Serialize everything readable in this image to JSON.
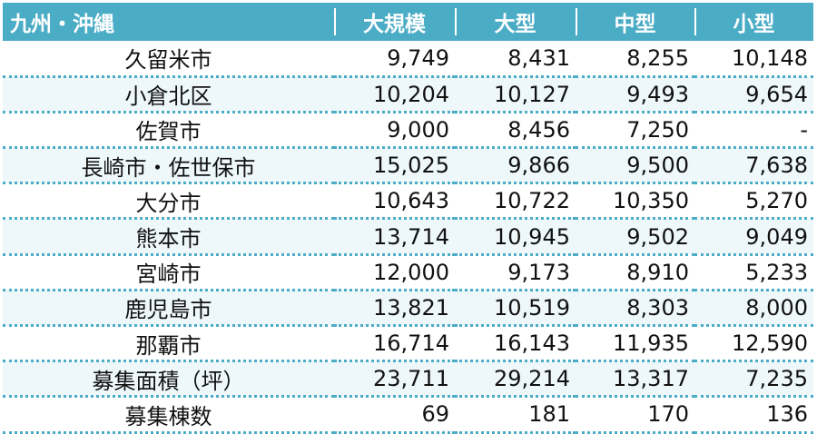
{
  "table": {
    "headers": [
      "九州・沖縄",
      "大規模",
      "大型",
      "中型",
      "小型"
    ],
    "rows": [
      {
        "name": "久留米市",
        "values": [
          "9,749",
          "8,431",
          "8,255",
          "10,148"
        ]
      },
      {
        "name": "小倉北区",
        "values": [
          "10,204",
          "10,127",
          "9,493",
          "9,654"
        ]
      },
      {
        "name": "佐賀市",
        "values": [
          "9,000",
          "8,456",
          "7,250",
          "-"
        ]
      },
      {
        "name": "長崎市・佐世保市",
        "values": [
          "15,025",
          "9,866",
          "9,500",
          "7,638"
        ]
      },
      {
        "name": "大分市",
        "values": [
          "10,643",
          "10,722",
          "10,350",
          "5,270"
        ]
      },
      {
        "name": "熊本市",
        "values": [
          "13,714",
          "10,945",
          "9,502",
          "9,049"
        ]
      },
      {
        "name": "宮崎市",
        "values": [
          "12,000",
          "9,173",
          "8,910",
          "5,233"
        ]
      },
      {
        "name": "鹿児島市",
        "values": [
          "13,821",
          "10,519",
          "8,303",
          "8,000"
        ]
      },
      {
        "name": "那覇市",
        "values": [
          "16,714",
          "16,143",
          "11,935",
          "12,590"
        ]
      },
      {
        "name": "募集面積（坪）",
        "values": [
          "23,711",
          "29,214",
          "13,317",
          "7,235"
        ]
      },
      {
        "name": "募集棟数",
        "values": [
          "69",
          "181",
          "170",
          "136"
        ]
      }
    ]
  },
  "colors": {
    "header_bg": "#4bacc6",
    "header_text": "#ffffff",
    "row_divider": "#4bacc6",
    "alt_row_bg": "#eef8fb"
  }
}
